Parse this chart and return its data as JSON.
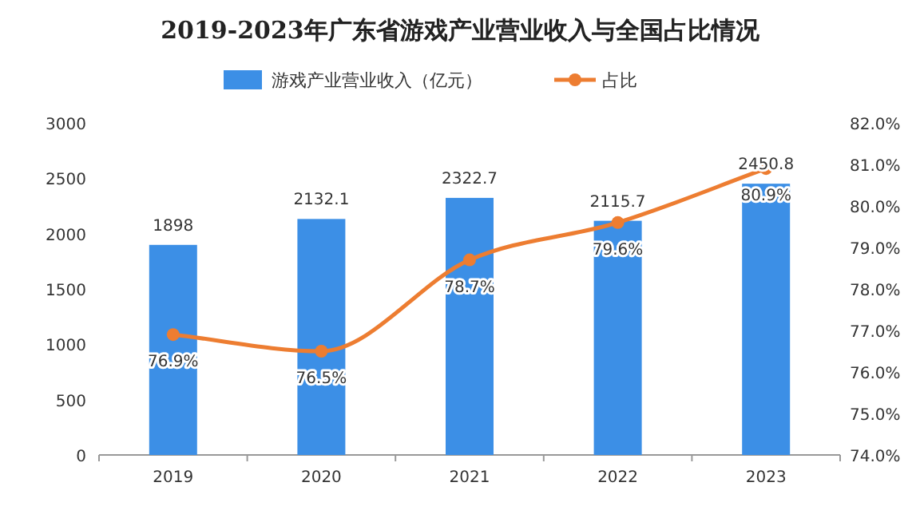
{
  "chart_data": {
    "type": "bar",
    "title": "2019-2023年广东省游戏产业营业收入与全国占比情况",
    "categories": [
      "2019",
      "2020",
      "2021",
      "2022",
      "2023"
    ],
    "series": [
      {
        "name": "游戏产业营业收入（亿元）",
        "color": "#3c8fe6",
        "values": [
          1898,
          2132.1,
          2322.7,
          2115.7,
          2450.8
        ],
        "value_labels": [
          "1898",
          "2132.1",
          "2322.7",
          "2115.7",
          "2450.8"
        ]
      },
      {
        "name": "占比",
        "type": "line",
        "axis": "y2",
        "color": "#ed7d31",
        "marker": "circle",
        "values": [
          76.9,
          76.5,
          78.7,
          79.6,
          80.9
        ],
        "value_labels": [
          "76.9%",
          "76.5%",
          "78.7%",
          "79.6%",
          "80.9%"
        ]
      }
    ],
    "ylim": [
      0,
      3000
    ],
    "yticks": [
      0,
      500,
      1000,
      1500,
      2000,
      2500,
      3000
    ],
    "y2lim": [
      74,
      82
    ],
    "y2ticks": [
      {
        "value": 74,
        "label": "74.0%"
      },
      {
        "value": 75,
        "label": "75.0%"
      },
      {
        "value": 76,
        "label": "76.0%"
      },
      {
        "value": 77,
        "label": "77.0%"
      },
      {
        "value": 78,
        "label": "78.0%"
      },
      {
        "value": 79,
        "label": "79.0%"
      },
      {
        "value": 80,
        "label": "80.0%"
      },
      {
        "value": 81,
        "label": "81.0%"
      },
      {
        "value": 82,
        "label": "82.0%"
      }
    ],
    "grid": false,
    "legend": "top"
  }
}
